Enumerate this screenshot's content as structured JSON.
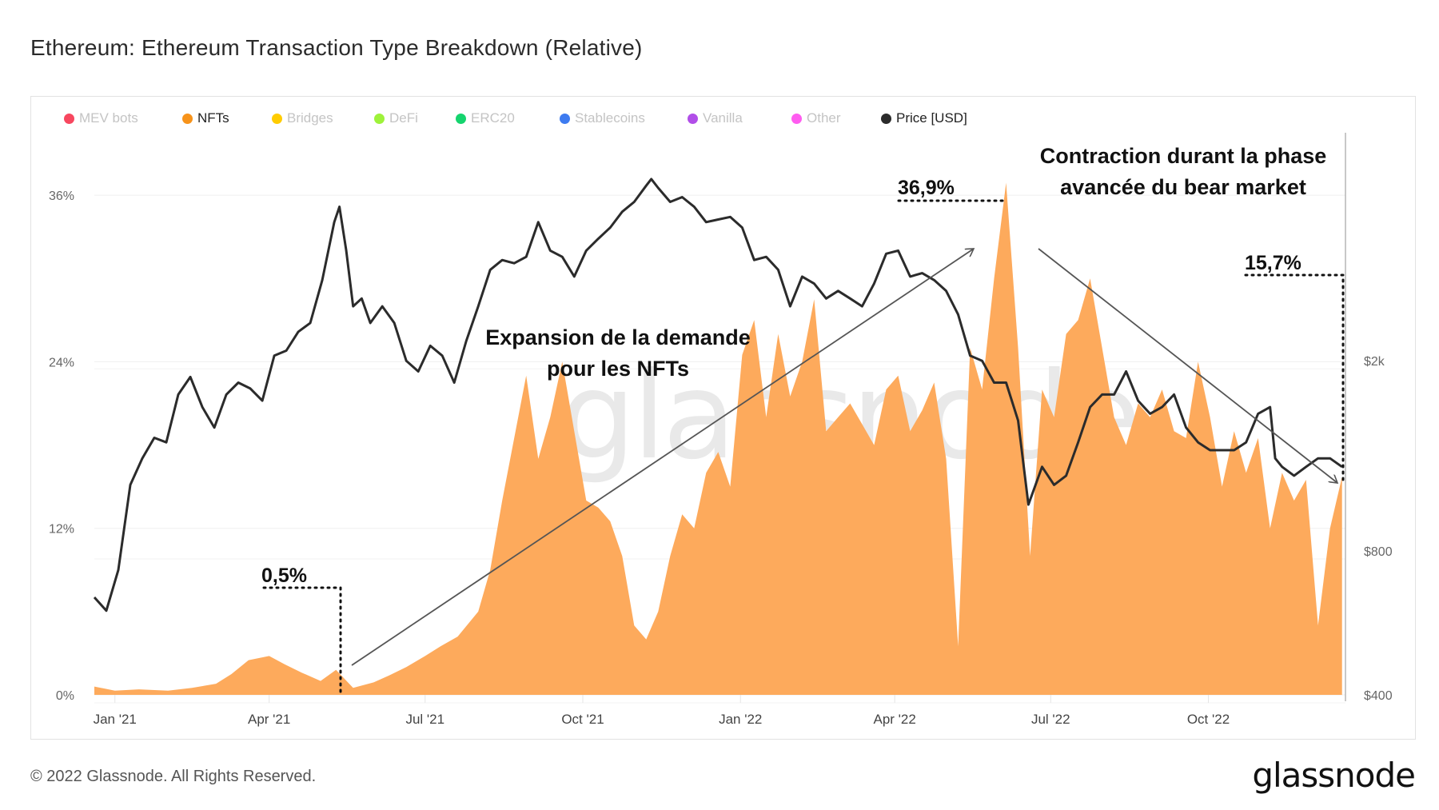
{
  "title": "Ethereum: Ethereum Transaction Type Breakdown (Relative)",
  "legend": [
    {
      "label": "MEV bots",
      "color": "#f7475f",
      "active": false
    },
    {
      "label": "NFTs",
      "color": "#f7931a",
      "active": true
    },
    {
      "label": "Bridges",
      "color": "#ffcc00",
      "active": false
    },
    {
      "label": "DeFi",
      "color": "#9ef23a",
      "active": false
    },
    {
      "label": "ERC20",
      "color": "#15d46e",
      "active": false
    },
    {
      "label": "Stablecoins",
      "color": "#3e7bf0",
      "active": false
    },
    {
      "label": "Vanilla",
      "color": "#b14ee8",
      "active": false
    },
    {
      "label": "Other",
      "color": "#ff5cf0",
      "active": false
    },
    {
      "label": "Price [USD]",
      "color": "#2b2b2b",
      "active": true
    }
  ],
  "watermark": "glassnode",
  "footer": {
    "copyright": "© 2022 Glassnode. All Rights Reserved.",
    "logo": "glassnode"
  },
  "annotations": {
    "expansion_line1": "Expansion de la demande",
    "expansion_line2": "pour les NFTs",
    "contraction_line1": "Contraction durant la phase",
    "contraction_line2": "avancée du bear market",
    "low_label": "0,5%",
    "peak_label": "36,9%",
    "last_label": "15,7%"
  },
  "chart_data": {
    "type": "area",
    "title": "Ethereum: Ethereum Transaction Type Breakdown (Relative)",
    "x_ticks": [
      "Jan '21",
      "Apr '21",
      "Jul '21",
      "Oct '21",
      "Jan '22",
      "Apr '22",
      "Jul '22",
      "Oct '22"
    ],
    "x_range": [
      "2020-12-20",
      "2022-12-20"
    ],
    "y_left": {
      "ticks": [
        "0%",
        "12%",
        "24%",
        "36%"
      ],
      "tick_values": [
        0,
        12,
        24,
        36
      ],
      "range": [
        0,
        40.5
      ],
      "unit": "%"
    },
    "y_right": {
      "ticks": [
        "$400",
        "$800",
        "$2k"
      ],
      "tick_values": [
        400,
        800,
        2000
      ],
      "scale": "log",
      "range": [
        400,
        6000
      ],
      "unit": "USD"
    },
    "grid": true,
    "legend_position": "top-left",
    "series": [
      {
        "name": "NFTs",
        "type": "area",
        "axis": "left",
        "color": "#fdaa5c",
        "dates": [
          "2020-12-20",
          "2021-01-01",
          "2021-01-15",
          "2021-02-01",
          "2021-02-15",
          "2021-03-01",
          "2021-03-10",
          "2021-03-20",
          "2021-04-01",
          "2021-04-10",
          "2021-04-20",
          "2021-05-01",
          "2021-05-10",
          "2021-05-20",
          "2021-06-01",
          "2021-06-10",
          "2021-06-20",
          "2021-07-01",
          "2021-07-10",
          "2021-07-20",
          "2021-08-01",
          "2021-08-08",
          "2021-08-15",
          "2021-08-22",
          "2021-08-29",
          "2021-09-05",
          "2021-09-12",
          "2021-09-19",
          "2021-09-26",
          "2021-10-03",
          "2021-10-10",
          "2021-10-17",
          "2021-10-24",
          "2021-10-31",
          "2021-11-07",
          "2021-11-14",
          "2021-11-21",
          "2021-11-28",
          "2021-12-05",
          "2021-12-12",
          "2021-12-19",
          "2021-12-26",
          "2022-01-02",
          "2022-01-09",
          "2022-01-16",
          "2022-01-23",
          "2022-01-30",
          "2022-02-06",
          "2022-02-13",
          "2022-02-20",
          "2022-02-27",
          "2022-03-06",
          "2022-03-13",
          "2022-03-20",
          "2022-03-27",
          "2022-04-03",
          "2022-04-10",
          "2022-04-17",
          "2022-04-24",
          "2022-05-01",
          "2022-05-08",
          "2022-05-15",
          "2022-05-22",
          "2022-05-29",
          "2022-06-05",
          "2022-06-12",
          "2022-06-19",
          "2022-06-26",
          "2022-07-03",
          "2022-07-10",
          "2022-07-17",
          "2022-07-24",
          "2022-07-31",
          "2022-08-07",
          "2022-08-14",
          "2022-08-21",
          "2022-08-28",
          "2022-09-04",
          "2022-09-11",
          "2022-09-18",
          "2022-09-25",
          "2022-10-02",
          "2022-10-09",
          "2022-10-16",
          "2022-10-23",
          "2022-10-30",
          "2022-11-06",
          "2022-11-13",
          "2022-11-20",
          "2022-11-27",
          "2022-12-04",
          "2022-12-11",
          "2022-12-18"
        ],
        "values": [
          0.6,
          0.3,
          0.4,
          0.3,
          0.5,
          0.8,
          1.5,
          2.5,
          2.8,
          2.2,
          1.6,
          1.0,
          1.8,
          0.5,
          0.9,
          1.4,
          2.0,
          2.8,
          3.5,
          4.2,
          6.0,
          9.0,
          14.0,
          18.5,
          23.0,
          17.0,
          20.0,
          24.0,
          19.0,
          14.0,
          13.5,
          12.5,
          10.0,
          5.0,
          4.0,
          6.0,
          10.0,
          13.0,
          12.0,
          16.0,
          17.5,
          15.0,
          24.5,
          27.0,
          20.0,
          26.0,
          21.5,
          24.0,
          28.5,
          19.0,
          20.0,
          21.0,
          19.5,
          18.0,
          22.0,
          23.0,
          19.0,
          20.5,
          22.5,
          17.0,
          3.5,
          25.0,
          22.0,
          30.0,
          36.9,
          25.0,
          10.0,
          22.0,
          20.0,
          26.0,
          27.0,
          30.0,
          25.0,
          20.0,
          18.0,
          21.0,
          20.0,
          22.0,
          19.0,
          18.5,
          24.0,
          20.0,
          15.0,
          19.0,
          16.0,
          18.5,
          12.0,
          16.0,
          14.0,
          15.5,
          5.0,
          12.0,
          15.7
        ]
      },
      {
        "name": "Price [USD]",
        "type": "line",
        "axis": "right",
        "color": "#2b2b2b",
        "dates": [
          "2020-12-20",
          "2020-12-27",
          "2021-01-03",
          "2021-01-10",
          "2021-01-17",
          "2021-01-24",
          "2021-01-31",
          "2021-02-07",
          "2021-02-14",
          "2021-02-21",
          "2021-02-28",
          "2021-03-07",
          "2021-03-14",
          "2021-03-21",
          "2021-03-28",
          "2021-04-04",
          "2021-04-11",
          "2021-04-18",
          "2021-04-25",
          "2021-05-02",
          "2021-05-09",
          "2021-05-12",
          "2021-05-16",
          "2021-05-20",
          "2021-05-25",
          "2021-05-30",
          "2021-06-06",
          "2021-06-13",
          "2021-06-20",
          "2021-06-27",
          "2021-07-04",
          "2021-07-11",
          "2021-07-18",
          "2021-07-25",
          "2021-08-01",
          "2021-08-08",
          "2021-08-15",
          "2021-08-22",
          "2021-08-29",
          "2021-09-05",
          "2021-09-12",
          "2021-09-19",
          "2021-09-26",
          "2021-10-03",
          "2021-10-10",
          "2021-10-17",
          "2021-10-24",
          "2021-10-31",
          "2021-11-07",
          "2021-11-10",
          "2021-11-14",
          "2021-11-21",
          "2021-11-28",
          "2021-12-05",
          "2021-12-12",
          "2021-12-19",
          "2021-12-26",
          "2022-01-02",
          "2022-01-09",
          "2022-01-16",
          "2022-01-23",
          "2022-01-30",
          "2022-02-06",
          "2022-02-13",
          "2022-02-20",
          "2022-02-27",
          "2022-03-06",
          "2022-03-13",
          "2022-03-20",
          "2022-03-27",
          "2022-04-03",
          "2022-04-10",
          "2022-04-17",
          "2022-04-24",
          "2022-05-01",
          "2022-05-08",
          "2022-05-15",
          "2022-05-22",
          "2022-05-29",
          "2022-06-05",
          "2022-06-12",
          "2022-06-18",
          "2022-06-26",
          "2022-07-03",
          "2022-07-10",
          "2022-07-17",
          "2022-07-24",
          "2022-07-31",
          "2022-08-07",
          "2022-08-14",
          "2022-08-21",
          "2022-08-28",
          "2022-09-04",
          "2022-09-11",
          "2022-09-18",
          "2022-09-25",
          "2022-10-02",
          "2022-10-09",
          "2022-10-16",
          "2022-10-23",
          "2022-10-30",
          "2022-11-06",
          "2022-11-09",
          "2022-11-13",
          "2022-11-20",
          "2022-11-27",
          "2022-12-04",
          "2022-12-11",
          "2022-12-18"
        ],
        "values": [
          640,
          600,
          730,
          1100,
          1250,
          1380,
          1350,
          1700,
          1850,
          1600,
          1450,
          1700,
          1800,
          1750,
          1650,
          2050,
          2100,
          2300,
          2400,
          2950,
          3900,
          4200,
          3400,
          2600,
          2700,
          2400,
          2600,
          2400,
          2000,
          1900,
          2150,
          2050,
          1800,
          2200,
          2600,
          3100,
          3250,
          3200,
          3300,
          3900,
          3400,
          3300,
          3000,
          3400,
          3600,
          3800,
          4100,
          4300,
          4650,
          4800,
          4600,
          4300,
          4400,
          4200,
          3900,
          3950,
          4000,
          3800,
          3250,
          3300,
          3100,
          2600,
          3000,
          2900,
          2700,
          2800,
          2700,
          2600,
          2900,
          3350,
          3400,
          3000,
          3050,
          2950,
          2800,
          2500,
          2050,
          2000,
          1800,
          1800,
          1500,
          1000,
          1200,
          1100,
          1150,
          1350,
          1600,
          1700,
          1700,
          1900,
          1650,
          1550,
          1600,
          1700,
          1450,
          1350,
          1300,
          1300,
          1300,
          1350,
          1550,
          1600,
          1250,
          1200,
          1150,
          1200,
          1250,
          1250,
          1200
        ]
      }
    ],
    "annotations": [
      {
        "text": "0,5%",
        "date": "2021-05-20",
        "value": 0.5
      },
      {
        "text": "36,9%",
        "date": "2022-06-05",
        "value": 36.9
      },
      {
        "text": "15,7%",
        "date": "2022-12-18",
        "value": 15.7
      },
      {
        "text": "Expansion de la demande pour les NFTs",
        "kind": "trend-up-arrow",
        "from": [
          "2021-05-25",
          2.5
        ],
        "to": [
          "2022-05-01",
          33.5
        ]
      },
      {
        "text": "Contraction durant la phase avancée du bear market",
        "kind": "trend-down-arrow",
        "from": [
          "2022-05-20",
          33.0
        ],
        "to": [
          "2022-12-15",
          15.8
        ]
      }
    ]
  }
}
